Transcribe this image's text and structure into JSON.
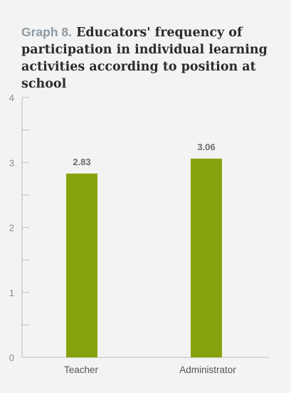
{
  "title": {
    "prefix": "Graph 8.",
    "text": "Educators' frequency of participation in individual learning activities according to position at school"
  },
  "colors": {
    "bar": "#86a30d",
    "axis": "#bdbdbd",
    "background": "#f3f3f3"
  },
  "chart_data": {
    "type": "bar",
    "title": "Graph 8. Educators' frequency of participation in individual learning activities according to position at school",
    "categories": [
      "Teacher",
      "Administrator"
    ],
    "values": [
      2.83,
      3.06
    ],
    "value_labels": [
      "2.83",
      "3.06"
    ],
    "xlabel": "",
    "ylabel": "",
    "ylim": [
      0,
      4
    ],
    "yticks": [
      0,
      1,
      2,
      3,
      4
    ],
    "ytick_labels": [
      "0",
      "1",
      "2",
      "3",
      "4"
    ],
    "grid": false,
    "legend": "none"
  }
}
